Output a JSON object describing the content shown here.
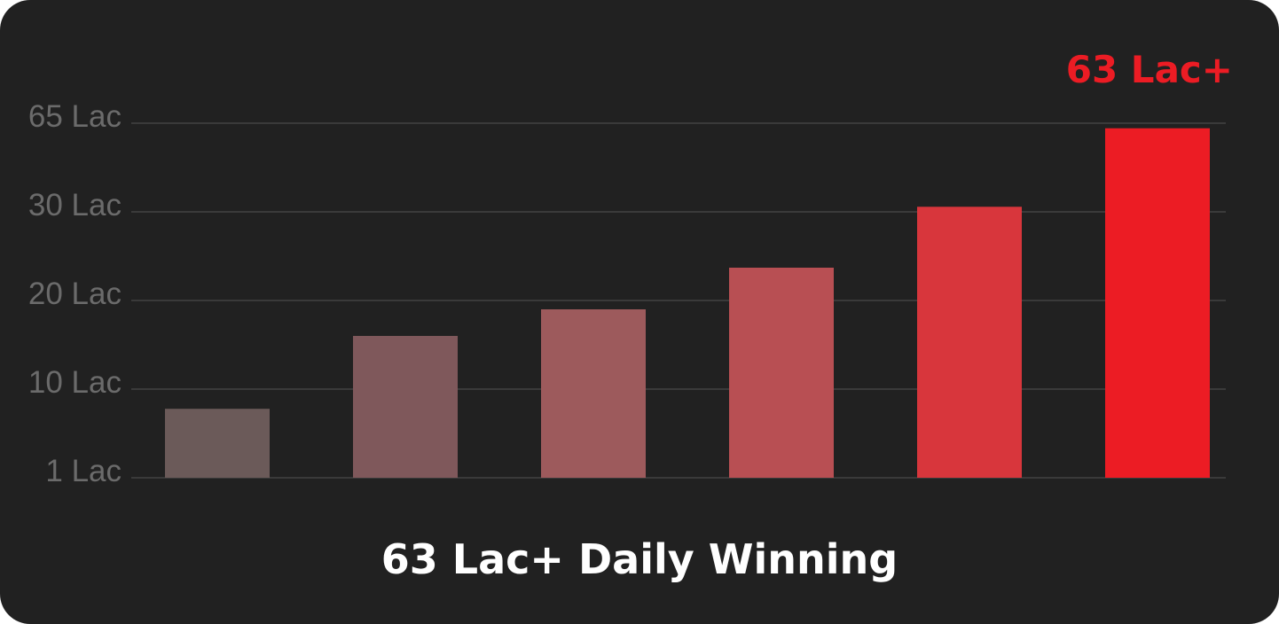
{
  "chart_data": {
    "type": "bar",
    "categories": [
      "",
      "",
      "",
      "",
      "",
      ""
    ],
    "values": [
      8,
      16,
      19,
      23.7,
      32,
      63
    ],
    "y_ticks": [
      {
        "label": "1 Lac",
        "value": 1
      },
      {
        "label": "10 Lac",
        "value": 10
      },
      {
        "label": "20 Lac",
        "value": 20
      },
      {
        "label": "30 Lac",
        "value": 30
      },
      {
        "label": "65 Lac",
        "value": 65
      }
    ],
    "highlight_label": "63 Lac+",
    "title": "63 Lac+ Daily Winning",
    "xlabel": "",
    "ylabel": "",
    "grid": true,
    "bar_colors": [
      "#6b5a59",
      "#7f585b",
      "#9d5a5c",
      "#b84f53",
      "#d8363c",
      "#ec1c24"
    ],
    "gridline_color": "#3a3a3a",
    "tick_color": "#6b6b6b",
    "background_color": "#212121"
  }
}
